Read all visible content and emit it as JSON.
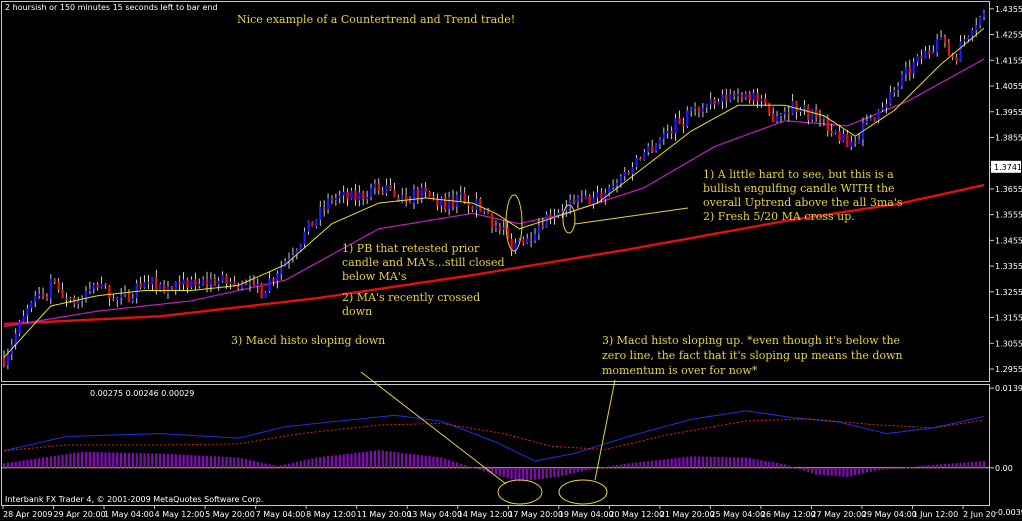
{
  "chart_window": {
    "status_text": "2 hoursish or 150 minutes 15 seconds left to bar end",
    "title": "Nice example of a Countertrend and Trend trade!",
    "footer_text": "Interbank FX Trader 4, © 2001-2009 MetaQuotes Software Corp."
  },
  "chart_data": [
    {
      "type": "candlestick",
      "panel": "price",
      "ylim": [
        1.292,
        1.437
      ],
      "y_ticks": [
        "1.4355",
        "1.4255",
        "1.4155",
        "1.4055",
        "1.3955",
        "1.3855",
        "1.3741",
        "1.3655",
        "1.3555",
        "1.3455",
        "1.3355",
        "1.3255",
        "1.3155",
        "1.3055",
        "1.2955"
      ],
      "current_price": "1.3741",
      "x_ticks": [
        "28 Apr 2009",
        "29 Apr 20:00",
        "1 May 04:00",
        "4 May 12:00",
        "5 May 20:00",
        "7 May 04:00",
        "8 May 12:00",
        "11 May 20:00",
        "13 May 04:00",
        "14 May 12:00",
        "17 May 20:00",
        "19 May 04:00",
        "20 May 12:00",
        "21 May 20:00",
        "25 May 04:00",
        "26 May 12:00",
        "27 May 20:00",
        "29 May 04:00",
        "1 Jun 12:00",
        "2 Jun 20"
      ],
      "colors": {
        "up": "#1a1aff",
        "down": "#e01010",
        "ma_fast": "#e8e030",
        "ma_mid": "#c020c0",
        "ma_slow": "#e01010"
      },
      "anchors": [
        [
          0,
          1.3
        ],
        [
          6,
          1.318
        ],
        [
          12,
          1.328
        ],
        [
          18,
          1.322
        ],
        [
          24,
          1.328
        ],
        [
          30,
          1.322
        ],
        [
          36,
          1.33
        ],
        [
          42,
          1.326
        ],
        [
          48,
          1.328
        ],
        [
          54,
          1.33
        ],
        [
          60,
          1.328
        ],
        [
          66,
          1.326
        ],
        [
          72,
          1.338
        ],
        [
          78,
          1.35
        ],
        [
          84,
          1.362
        ],
        [
          90,
          1.362
        ],
        [
          96,
          1.366
        ],
        [
          102,
          1.362
        ],
        [
          106,
          1.364
        ],
        [
          112,
          1.36
        ],
        [
          118,
          1.362
        ],
        [
          124,
          1.356
        ],
        [
          126,
          1.35
        ],
        [
          130,
          1.344
        ],
        [
          134,
          1.348
        ],
        [
          140,
          1.356
        ],
        [
          146,
          1.36
        ],
        [
          152,
          1.362
        ],
        [
          158,
          1.37
        ],
        [
          164,
          1.38
        ],
        [
          170,
          1.388
        ],
        [
          176,
          1.396
        ],
        [
          182,
          1.398
        ],
        [
          188,
          1.404
        ],
        [
          192,
          1.402
        ],
        [
          196,
          1.394
        ],
        [
          202,
          1.398
        ],
        [
          208,
          1.394
        ],
        [
          214,
          1.386
        ],
        [
          216,
          1.382
        ],
        [
          222,
          1.392
        ],
        [
          228,
          1.404
        ],
        [
          232,
          1.412
        ],
        [
          236,
          1.418
        ],
        [
          240,
          1.422
        ],
        [
          244,
          1.418
        ],
        [
          248,
          1.43
        ],
        [
          251,
          1.433
        ]
      ],
      "ma_anchors": {
        "ma_fast": [
          [
            0,
            1.3
          ],
          [
            12,
            1.32
          ],
          [
            24,
            1.324
          ],
          [
            36,
            1.326
          ],
          [
            48,
            1.326
          ],
          [
            60,
            1.328
          ],
          [
            72,
            1.336
          ],
          [
            84,
            1.352
          ],
          [
            96,
            1.36
          ],
          [
            108,
            1.362
          ],
          [
            120,
            1.36
          ],
          [
            126,
            1.356
          ],
          [
            132,
            1.35
          ],
          [
            140,
            1.354
          ],
          [
            152,
            1.36
          ],
          [
            164,
            1.374
          ],
          [
            176,
            1.388
          ],
          [
            188,
            1.398
          ],
          [
            200,
            1.398
          ],
          [
            210,
            1.394
          ],
          [
            218,
            1.386
          ],
          [
            228,
            1.396
          ],
          [
            240,
            1.414
          ],
          [
            251,
            1.428
          ]
        ],
        "ma_mid": [
          [
            0,
            1.312
          ],
          [
            24,
            1.318
          ],
          [
            48,
            1.322
          ],
          [
            72,
            1.33
          ],
          [
            96,
            1.35
          ],
          [
            120,
            1.356
          ],
          [
            132,
            1.352
          ],
          [
            144,
            1.356
          ],
          [
            164,
            1.366
          ],
          [
            182,
            1.382
          ],
          [
            200,
            1.392
          ],
          [
            216,
            1.39
          ],
          [
            232,
            1.4
          ],
          [
            251,
            1.416
          ]
        ],
        "ma_slow": [
          [
            0,
            1.313
          ],
          [
            40,
            1.316
          ],
          [
            80,
            1.323
          ],
          [
            120,
            1.332
          ],
          [
            160,
            1.342
          ],
          [
            200,
            1.353
          ],
          [
            230,
            1.36
          ],
          [
            251,
            1.367
          ]
        ]
      }
    },
    {
      "type": "macd_histogram",
      "panel": "indicator",
      "legend_values": "0.00275 0.00246 0.00029",
      "ylim": [
        -0.006,
        0.014
      ],
      "y_ticks": [
        "0.01397",
        "0.00"
      ],
      "bottom_tick": "-0.00396",
      "colors": {
        "histogram": "#7a10a8",
        "macd_line": "#2030e0",
        "signal_line": "#e02020"
      },
      "hist_anchors": [
        [
          0,
          0.0008
        ],
        [
          20,
          0.0028
        ],
        [
          40,
          0.0025
        ],
        [
          60,
          0.0018
        ],
        [
          70,
          0.0003
        ],
        [
          80,
          0.0018
        ],
        [
          96,
          0.0031
        ],
        [
          112,
          0.0018
        ],
        [
          124,
          -0.0008
        ],
        [
          132,
          -0.0024
        ],
        [
          142,
          -0.0016
        ],
        [
          150,
          -0.0003
        ],
        [
          160,
          0.0008
        ],
        [
          176,
          0.002
        ],
        [
          190,
          0.0018
        ],
        [
          200,
          0.0006
        ],
        [
          208,
          -0.0012
        ],
        [
          216,
          -0.0016
        ],
        [
          224,
          -0.0004
        ],
        [
          236,
          0.0004
        ],
        [
          251,
          0.0012
        ]
      ],
      "macd_anchors": [
        [
          0,
          0.003
        ],
        [
          16,
          0.0055
        ],
        [
          40,
          0.006
        ],
        [
          60,
          0.0052
        ],
        [
          72,
          0.0072
        ],
        [
          90,
          0.0085
        ],
        [
          100,
          0.0092
        ],
        [
          112,
          0.0082
        ],
        [
          126,
          0.0045
        ],
        [
          136,
          0.0012
        ],
        [
          146,
          0.0025
        ],
        [
          160,
          0.0055
        ],
        [
          176,
          0.0085
        ],
        [
          190,
          0.01
        ],
        [
          202,
          0.0088
        ],
        [
          214,
          0.008
        ],
        [
          226,
          0.006
        ],
        [
          238,
          0.007
        ],
        [
          251,
          0.009
        ]
      ],
      "signal_anchors": [
        [
          0,
          0.003
        ],
        [
          16,
          0.004
        ],
        [
          40,
          0.004
        ],
        [
          60,
          0.0042
        ],
        [
          76,
          0.006
        ],
        [
          96,
          0.0075
        ],
        [
          112,
          0.0078
        ],
        [
          128,
          0.006
        ],
        [
          140,
          0.0038
        ],
        [
          154,
          0.0032
        ],
        [
          170,
          0.0058
        ],
        [
          190,
          0.0082
        ],
        [
          206,
          0.0086
        ],
        [
          222,
          0.0076
        ],
        [
          238,
          0.007
        ],
        [
          251,
          0.0084
        ]
      ]
    }
  ],
  "annotations": {
    "note_pb": [
      "1) PB that retested prior",
      "candle and MA's...still closed",
      "below MA's",
      "2) MA's recently crossed",
      "down"
    ],
    "note_engulf": [
      "1) A little hard to see, but this is a",
      "bullish engulfing candle WITH the",
      "overall Uptrend above the all 3ma's",
      "2) Fresh 5/20 MA cross up."
    ],
    "note_macd_down": [
      "3) Macd histo sloping down"
    ],
    "note_macd_up": [
      "3) Macd histo sloping up. *even though it's below the",
      "zero line, the fact that it's sloping up means the down",
      "momentum is over for now*"
    ]
  }
}
